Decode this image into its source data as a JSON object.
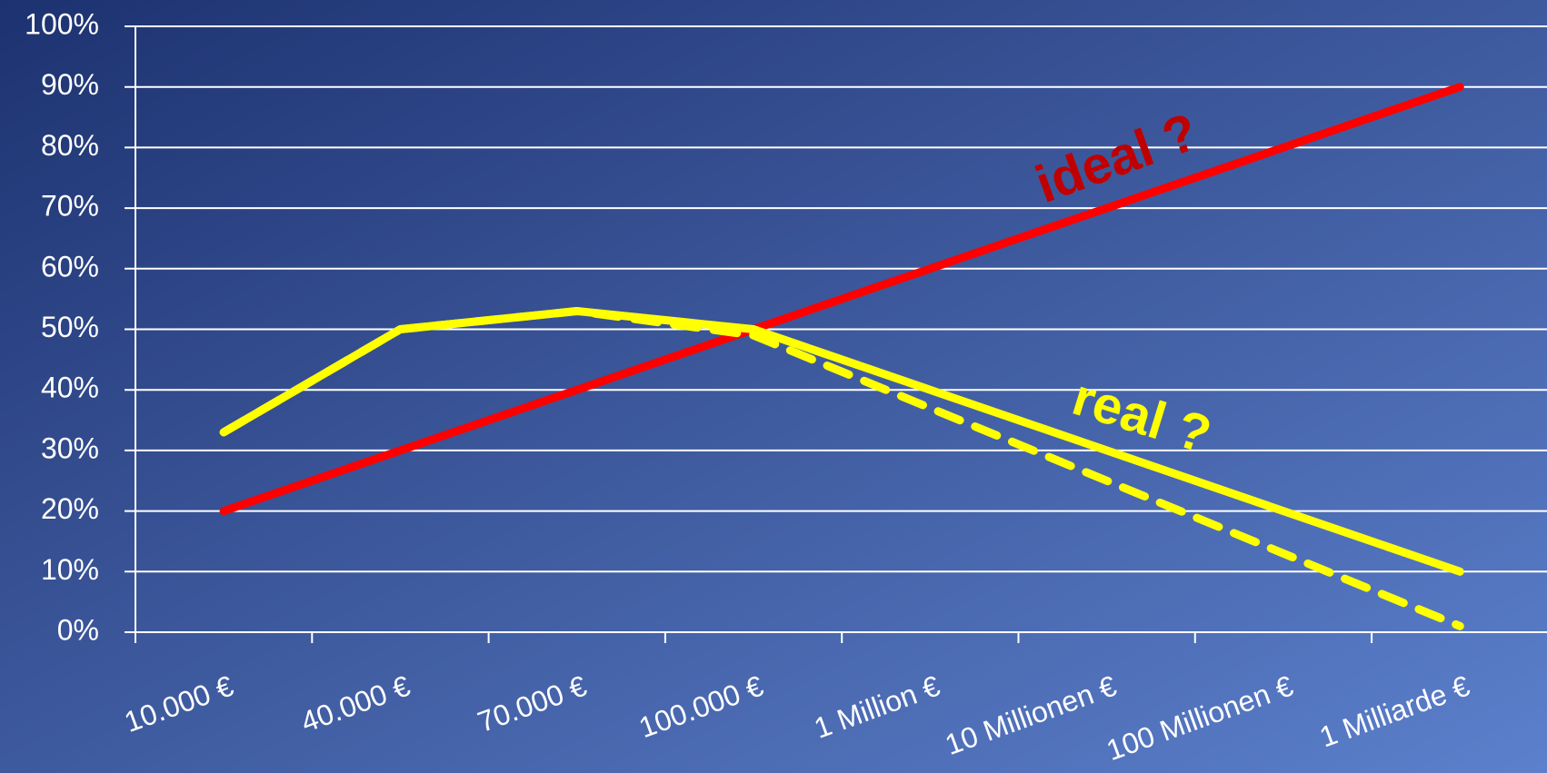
{
  "chart_data": {
    "type": "line",
    "categories": [
      "10.000 €",
      "40.000 €",
      "70.000 €",
      "100.000 €",
      "1 Million €",
      "10 Millionen €",
      "100 Millionen €",
      "1 Milliarde €"
    ],
    "series": [
      {
        "color": "#ff0000",
        "dash": false,
        "values": [
          20,
          30,
          40,
          50,
          60,
          70,
          80,
          90
        ]
      },
      {
        "color": "#ffff00",
        "dash": false,
        "values": [
          33,
          50,
          53,
          50,
          40,
          30,
          20,
          10
        ]
      },
      {
        "color": "#ffff00",
        "dash": true,
        "values": [
          33,
          50,
          53,
          49,
          37,
          25,
          13,
          1
        ]
      }
    ],
    "annotations": [
      {
        "text": "ideal ?",
        "color": "#c00000"
      },
      {
        "text": "real ?",
        "color": "#ffff00"
      }
    ],
    "ylim": [
      0,
      100
    ],
    "yticks": [
      {
        "value": 0,
        "label": "0%"
      },
      {
        "value": 10,
        "label": "10%"
      },
      {
        "value": 20,
        "label": "20%"
      },
      {
        "value": 30,
        "label": "30%"
      },
      {
        "value": 40,
        "label": "40%"
      },
      {
        "value": 50,
        "label": "50%"
      },
      {
        "value": 60,
        "label": "60%"
      },
      {
        "value": 70,
        "label": "70%"
      },
      {
        "value": 80,
        "label": "80%"
      },
      {
        "value": 90,
        "label": "90%"
      },
      {
        "value": 100,
        "label": "100%"
      }
    ],
    "grid": true
  }
}
